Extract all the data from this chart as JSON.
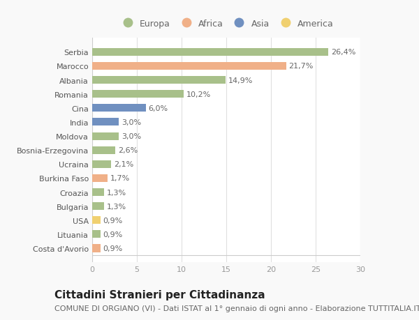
{
  "countries": [
    "Serbia",
    "Marocco",
    "Albania",
    "Romania",
    "Cina",
    "India",
    "Moldova",
    "Bosnia-Erzegovina",
    "Ucraina",
    "Burkina Faso",
    "Croazia",
    "Bulgaria",
    "USA",
    "Lituania",
    "Costa d'Avorio"
  ],
  "values": [
    26.4,
    21.7,
    14.9,
    10.2,
    6.0,
    3.0,
    3.0,
    2.6,
    2.1,
    1.7,
    1.3,
    1.3,
    0.9,
    0.9,
    0.9
  ],
  "labels": [
    "26,4%",
    "21,7%",
    "14,9%",
    "10,2%",
    "6,0%",
    "3,0%",
    "3,0%",
    "2,6%",
    "2,1%",
    "1,7%",
    "1,3%",
    "1,3%",
    "0,9%",
    "0,9%",
    "0,9%"
  ],
  "continents": [
    "Europa",
    "Africa",
    "Europa",
    "Europa",
    "Asia",
    "Asia",
    "Europa",
    "Europa",
    "Europa",
    "Africa",
    "Europa",
    "Europa",
    "America",
    "Europa",
    "Africa"
  ],
  "continent_colors": {
    "Europa": "#a8c08a",
    "Africa": "#f0b088",
    "Asia": "#7090c0",
    "America": "#f0d070"
  },
  "legend_order": [
    "Europa",
    "Africa",
    "Asia",
    "America"
  ],
  "title": "Cittadini Stranieri per Cittadinanza",
  "subtitle": "COMUNE DI ORGIANO (VI) - Dati ISTAT al 1° gennaio di ogni anno - Elaborazione TUTTITALIA.IT",
  "xlim": [
    0,
    30
  ],
  "xticks": [
    0,
    5,
    10,
    15,
    20,
    25,
    30
  ],
  "background_color": "#f9f9f9",
  "bar_background": "#ffffff",
  "title_fontsize": 11,
  "subtitle_fontsize": 8,
  "label_fontsize": 8,
  "tick_fontsize": 8,
  "legend_fontsize": 9
}
